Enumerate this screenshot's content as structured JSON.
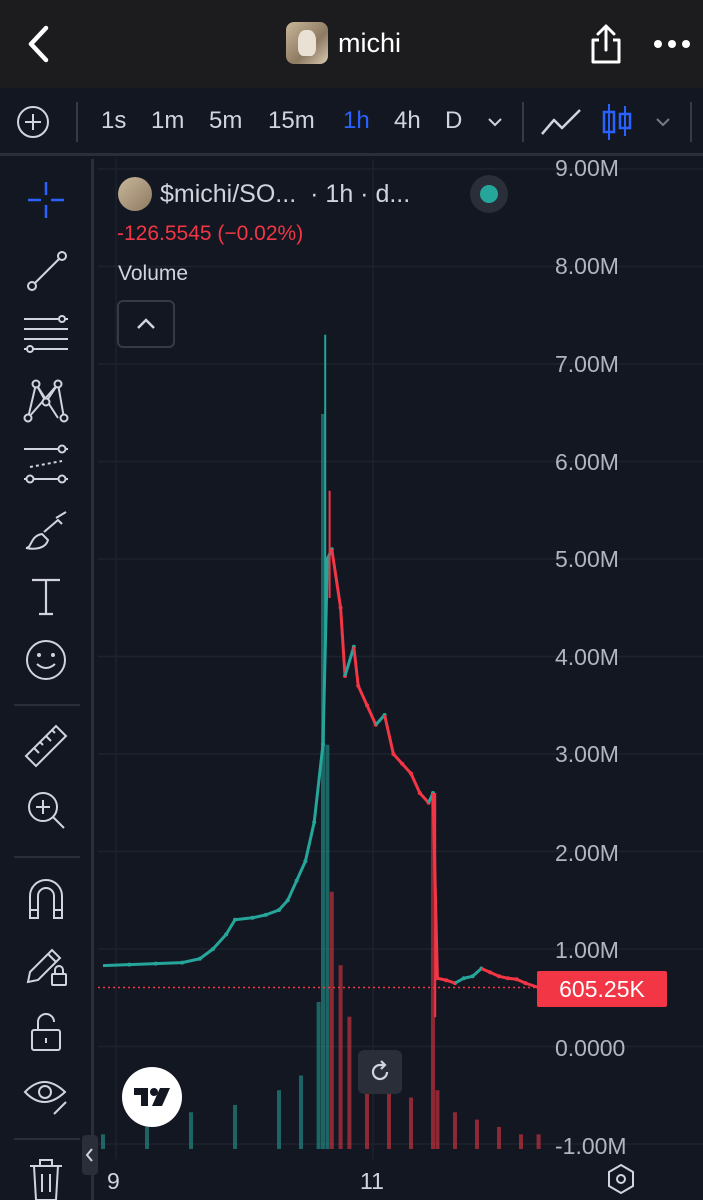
{
  "header": {
    "title": "michi",
    "back_icon": "chevron-left-icon",
    "share_icon": "share-icon",
    "more_icon": "more-dots-icon"
  },
  "toolbar": {
    "intervals": [
      "1s",
      "1m",
      "5m",
      "15m",
      "1h",
      "4h",
      "D"
    ],
    "active_interval": "1h",
    "chart_type_icons": [
      "line-chart-icon",
      "candles-icon"
    ]
  },
  "left_tools": [
    "crosshair-icon",
    "trend-line-icon",
    "fib-lines-icon",
    "pattern-icon",
    "prediction-icon",
    "brush-icon",
    "text-icon",
    "emoji-icon",
    "ruler-icon",
    "zoom-in-icon",
    "magnet-icon",
    "lock-drawing-icon",
    "unlock-icon",
    "eye-icon",
    "trash-icon"
  ],
  "legend": {
    "symbol": "$michi/SO...",
    "interval_text": "· 1h · d...",
    "change": "-126.5545 (−0.02%)",
    "volume_label": "Volume"
  },
  "price_badge": "605.25K",
  "colors": {
    "up": "#26a69a",
    "down": "#f23645",
    "accent": "#2962ff",
    "background": "#131722"
  },
  "chart_data": {
    "type": "line",
    "yaxis_ticks": [
      "9.00M",
      "8.00M",
      "7.00M",
      "6.00M",
      "5.00M",
      "4.00M",
      "3.00M",
      "2.00M",
      "1.00M",
      "0.0000",
      "-1.00M"
    ],
    "xaxis_ticks": [
      "9",
      "11"
    ],
    "ylim": [
      -1000000,
      9000000
    ],
    "last_price": 605250,
    "price_series": [
      [
        0,
        830000
      ],
      [
        6,
        840000
      ],
      [
        12,
        850000
      ],
      [
        18,
        860000
      ],
      [
        22,
        900000
      ],
      [
        25,
        1000000
      ],
      [
        28,
        1150000
      ],
      [
        30,
        1300000
      ],
      [
        34,
        1320000
      ],
      [
        37,
        1350000
      ],
      [
        40,
        1400000
      ],
      [
        42,
        1500000
      ],
      [
        44,
        1700000
      ],
      [
        46,
        1900000
      ],
      [
        48,
        2300000
      ],
      [
        50,
        3100000
      ],
      [
        51,
        5000000
      ],
      [
        52,
        5100000
      ],
      [
        54,
        4500000
      ],
      [
        55,
        3800000
      ],
      [
        57,
        4100000
      ],
      [
        58,
        3700000
      ],
      [
        60,
        3500000
      ],
      [
        62,
        3300000
      ],
      [
        64,
        3400000
      ],
      [
        66,
        3000000
      ],
      [
        68,
        2900000
      ],
      [
        70,
        2800000
      ],
      [
        72,
        2600000
      ],
      [
        74,
        2500000
      ],
      [
        75,
        2600000
      ],
      [
        76,
        700000
      ],
      [
        78,
        680000
      ],
      [
        80,
        650000
      ],
      [
        82,
        700000
      ],
      [
        84,
        720000
      ],
      [
        86,
        800000
      ],
      [
        88,
        760000
      ],
      [
        90,
        720000
      ],
      [
        92,
        700000
      ],
      [
        94,
        690000
      ],
      [
        96,
        650000
      ],
      [
        99,
        605250
      ]
    ],
    "volume_series": [
      [
        0,
        0.02
      ],
      [
        10,
        0.03
      ],
      [
        20,
        0.05
      ],
      [
        30,
        0.06
      ],
      [
        40,
        0.08
      ],
      [
        45,
        0.1
      ],
      [
        49,
        0.2
      ],
      [
        50,
        1.0
      ],
      [
        51,
        0.55
      ],
      [
        52,
        0.35
      ],
      [
        54,
        0.25
      ],
      [
        56,
        0.18
      ],
      [
        60,
        0.12
      ],
      [
        65,
        0.09
      ],
      [
        70,
        0.07
      ],
      [
        75,
        0.48
      ],
      [
        76,
        0.08
      ],
      [
        80,
        0.05
      ],
      [
        85,
        0.04
      ],
      [
        90,
        0.03
      ],
      [
        95,
        0.02
      ],
      [
        99,
        0.02
      ]
    ]
  }
}
